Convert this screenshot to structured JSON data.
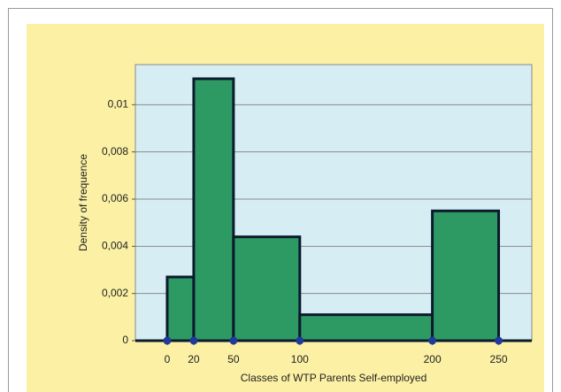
{
  "chart_data": {
    "type": "histogram",
    "xlabel": "Classes of WTP Parents Self-employed",
    "ylabel": "Density of frequence",
    "bins": [
      0,
      20,
      50,
      100,
      200,
      250
    ],
    "values": [
      0.0027,
      0.0111,
      0.0044,
      0.0011,
      0.0055
    ],
    "color": "#2e9a63",
    "edge_color": "#0b1a2e",
    "xlim": [
      -24,
      275
    ],
    "ylim": [
      0,
      0.0117
    ],
    "xticks": [
      0,
      20,
      50,
      100,
      200,
      250
    ],
    "yticks": [
      0,
      {
        "value": 0.002,
        "label": "0,002"
      },
      {
        "value": 0.004,
        "label": "0,004"
      },
      {
        "value": 0.006,
        "label": "0,006"
      },
      {
        "value": 0.008,
        "label": "0,008"
      },
      {
        "value": 0.01,
        "label": "0,01"
      }
    ],
    "grid": true
  }
}
